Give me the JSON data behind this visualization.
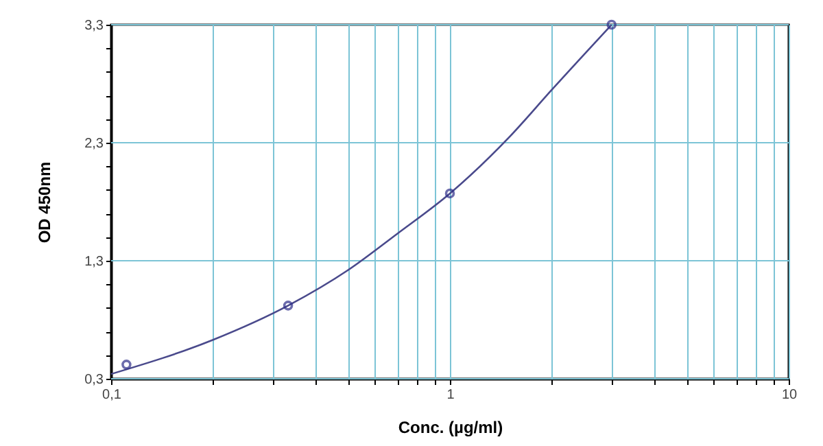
{
  "chart_data": {
    "type": "scatter",
    "xlabel": "Conc. (µg/ml)",
    "ylabel": "OD 450nm",
    "log": "x",
    "grid": true,
    "xlim": [
      0.1,
      10
    ],
    "ylim": [
      0.3,
      3.3
    ],
    "xticks": [
      {
        "value": 0.1,
        "label": "0,1"
      },
      {
        "value": 0.2,
        "label": null
      },
      {
        "value": 0.3,
        "label": null
      },
      {
        "value": 0.4,
        "label": null
      },
      {
        "value": 0.5,
        "label": null
      },
      {
        "value": 0.6,
        "label": null
      },
      {
        "value": 0.7,
        "label": null
      },
      {
        "value": 0.8,
        "label": null
      },
      {
        "value": 0.9,
        "label": null
      },
      {
        "value": 1,
        "label": "1"
      },
      {
        "value": 2,
        "label": null
      },
      {
        "value": 3,
        "label": null
      },
      {
        "value": 4,
        "label": null
      },
      {
        "value": 5,
        "label": null
      },
      {
        "value": 6,
        "label": null
      },
      {
        "value": 7,
        "label": null
      },
      {
        "value": 8,
        "label": null
      },
      {
        "value": 9,
        "label": null
      },
      {
        "value": 10,
        "label": "10"
      }
    ],
    "yticks": [
      {
        "value": 0.3,
        "label": "0,3"
      },
      {
        "value": 0.5,
        "label": null
      },
      {
        "value": 0.7,
        "label": null
      },
      {
        "value": 0.9,
        "label": null
      },
      {
        "value": 1.1,
        "label": null
      },
      {
        "value": 1.3,
        "label": "1,3"
      },
      {
        "value": 1.5,
        "label": null
      },
      {
        "value": 1.7,
        "label": null
      },
      {
        "value": 1.9,
        "label": null
      },
      {
        "value": 2.1,
        "label": null
      },
      {
        "value": 2.3,
        "label": "2,3"
      },
      {
        "value": 2.5,
        "label": null
      },
      {
        "value": 2.7,
        "label": null
      },
      {
        "value": 2.9,
        "label": null
      },
      {
        "value": 3.1,
        "label": null
      },
      {
        "value": 3.3,
        "label": "3,3"
      }
    ],
    "series": [
      {
        "type": "line",
        "color": "#4a4a8c",
        "marker": "none",
        "line_style": "solid",
        "x": [
          0.1,
          0.2,
          0.333,
          0.5,
          0.7,
          1,
          1.5,
          2,
          3
        ],
        "values": [
          0.34,
          0.63,
          0.92,
          1.22,
          1.53,
          1.87,
          2.35,
          2.75,
          3.3
        ]
      },
      {
        "color": "#2e2e8a",
        "marker": "circle",
        "x": [
          0.111,
          0.333,
          1,
          3
        ],
        "values": [
          0.42,
          0.92,
          1.87,
          3.3
        ]
      }
    ]
  }
}
